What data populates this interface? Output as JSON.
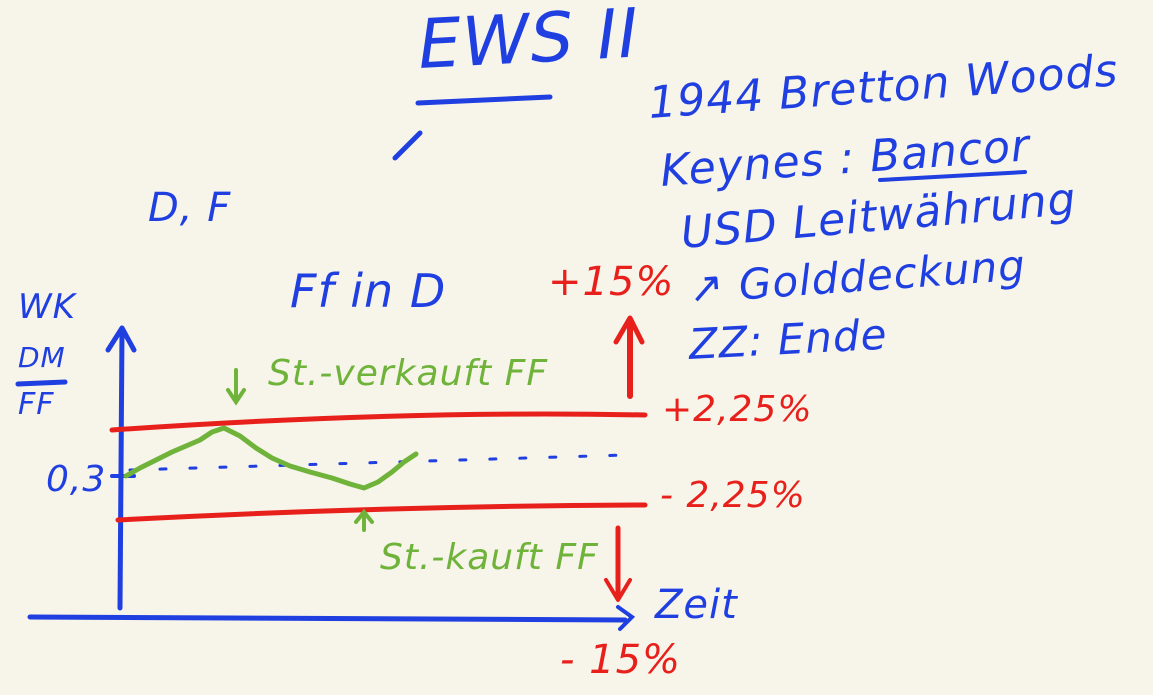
{
  "title": "EWS II",
  "notes": {
    "bretton_woods": "1944 Bretton Woods",
    "keynes": "Keynes : Bancor",
    "usd": "USD Leitwährung",
    "gold": "↗ Golddeckung",
    "zz": "ZZ: Ende"
  },
  "countries": "D, F",
  "subtitle": "Ff in D",
  "axis_label_top": "WK",
  "axis_label_fraction_num": "DM",
  "axis_label_fraction_den": "FF",
  "central_rate": "0,3",
  "labels": {
    "upper_band": "+2,25%",
    "lower_band": "- 2,25%",
    "wide_upper": "+15%",
    "wide_lower": "- 15%",
    "time": "Zeit",
    "sell": "St.-verkauft FF",
    "buy": "St.-kauft FF"
  },
  "colors": {
    "blue": "#1f3fe0",
    "red": "#e8201c",
    "green": "#6fb33a",
    "background": "#f7f4ea"
  }
}
